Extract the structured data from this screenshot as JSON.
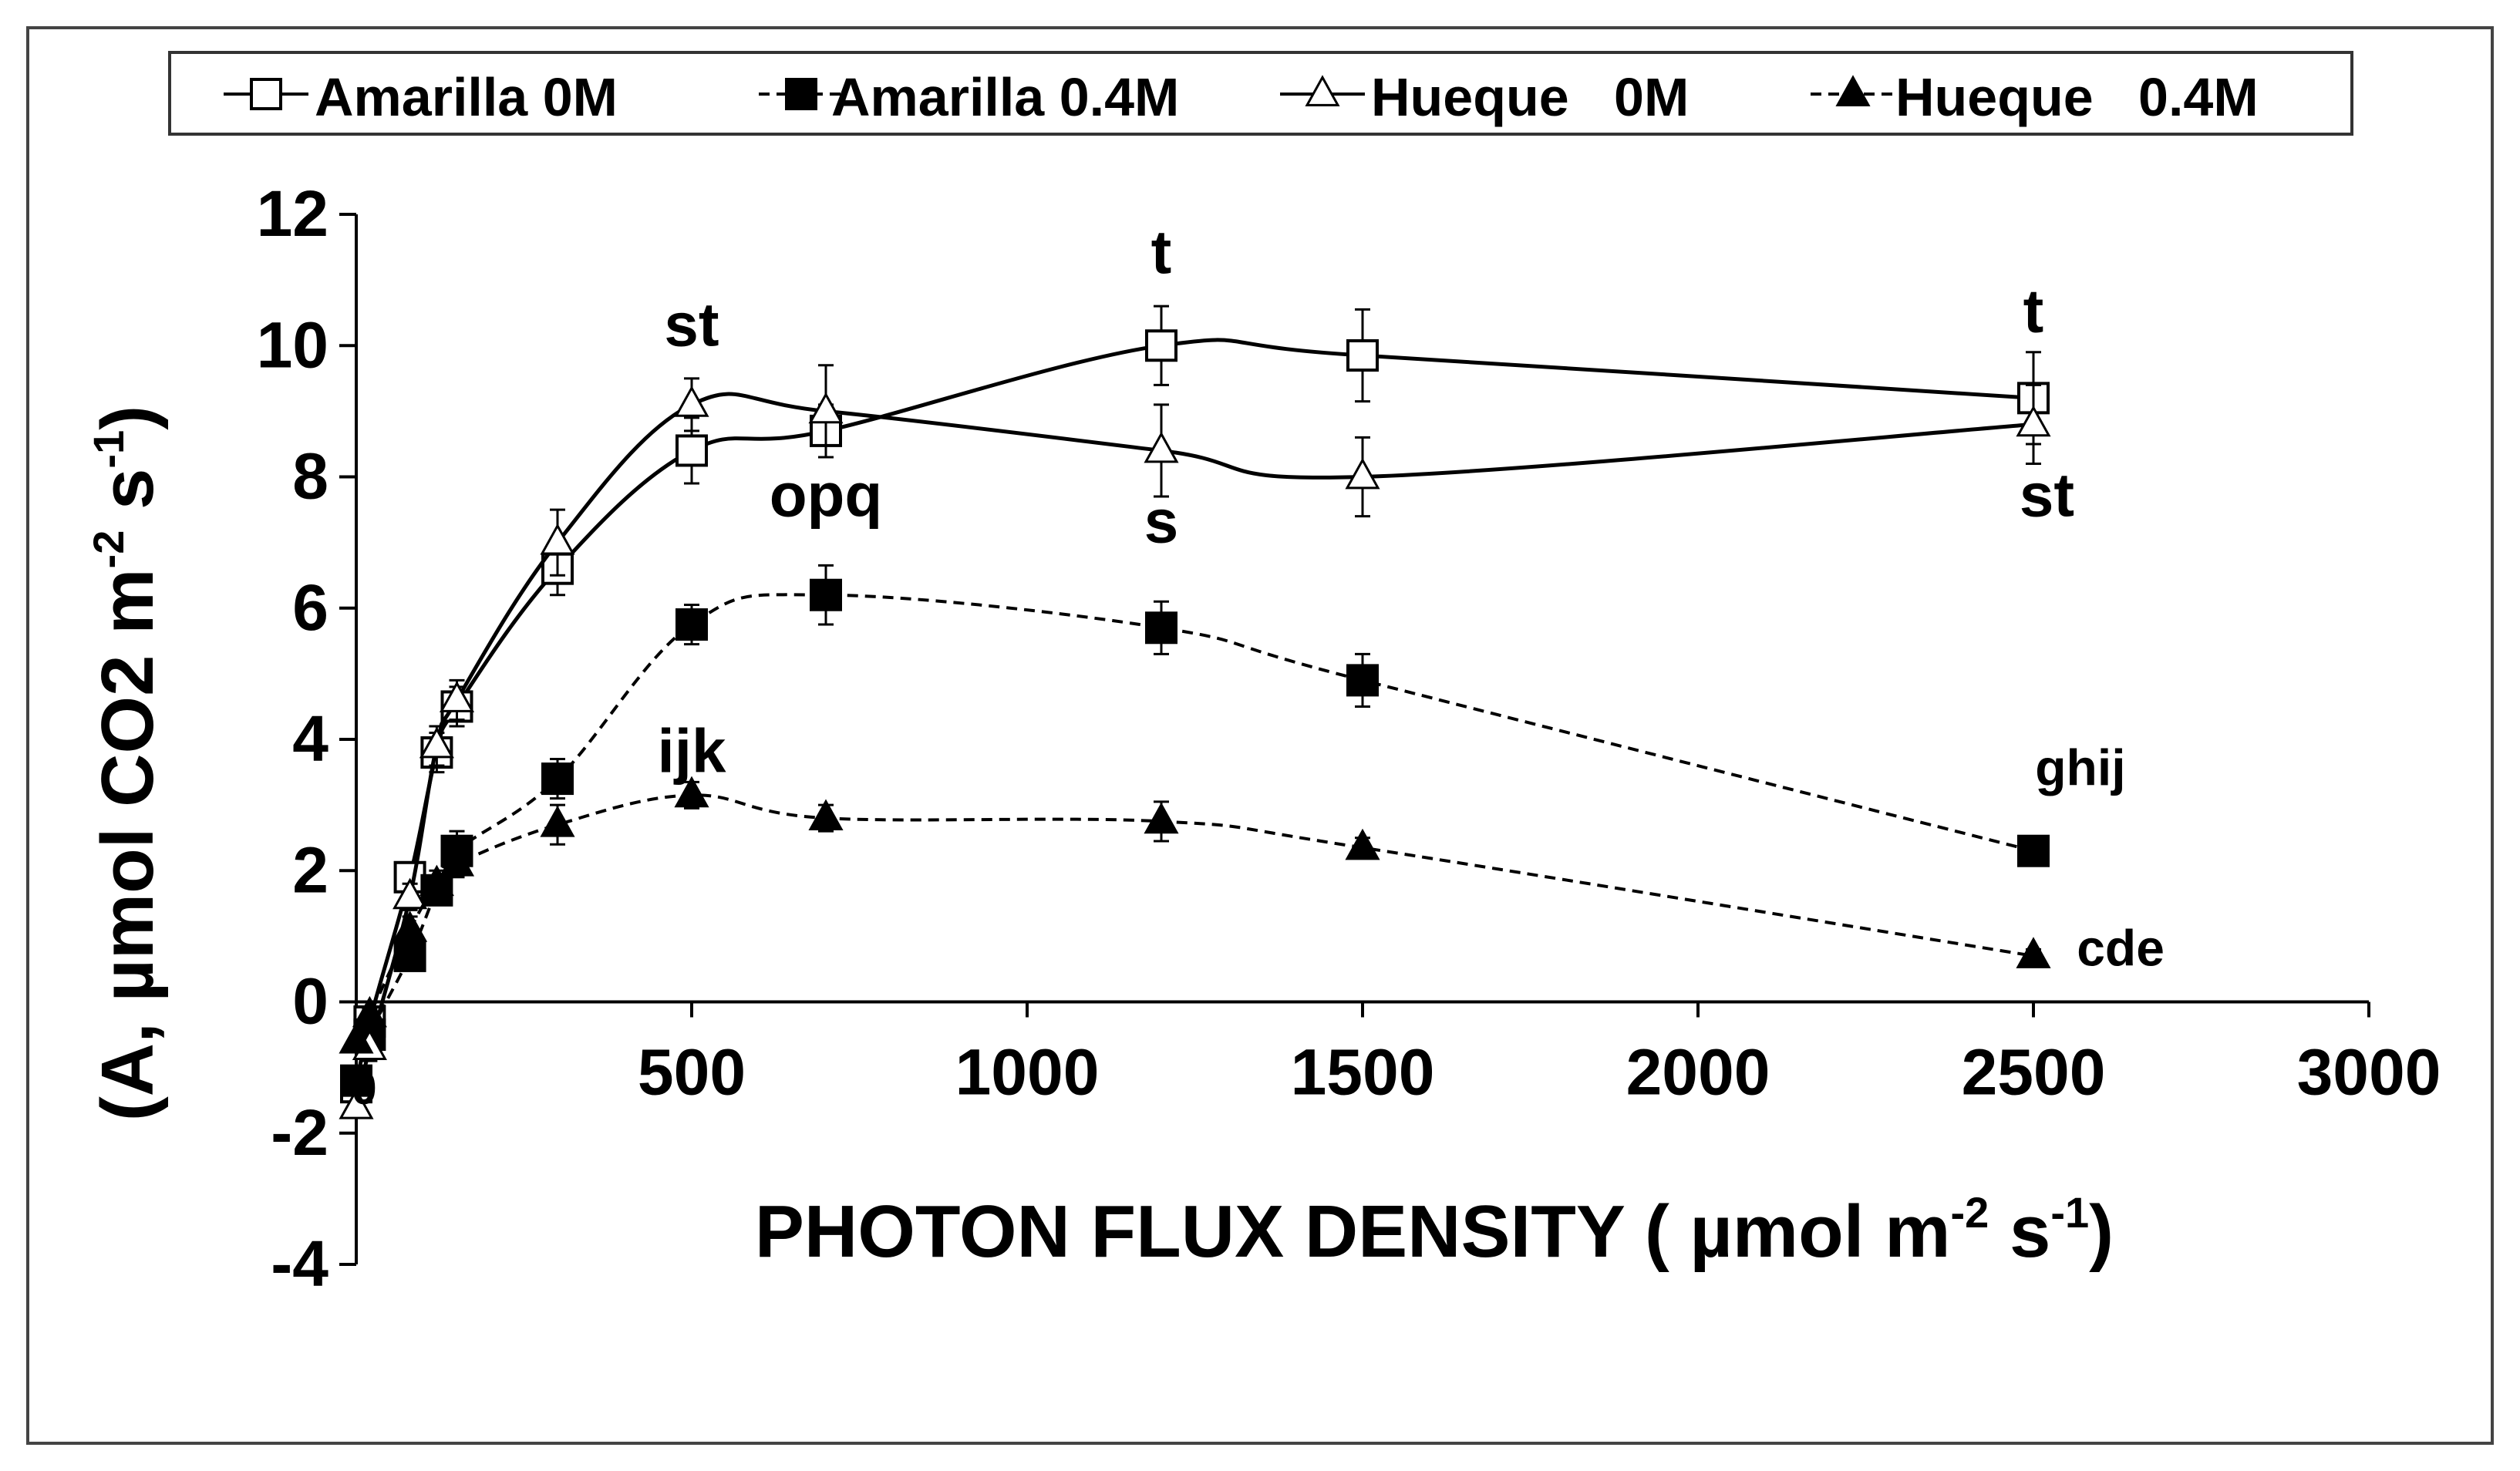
{
  "chart_data": {
    "type": "line",
    "title": "",
    "xlabel": "PHOTON FLUX DENSITY ( µmol m-2 s-1)",
    "ylabel": "(A, µmol CO2  m-2 s-1)",
    "xlabel_parts": {
      "pre": "PHOTON FLUX DENSITY ( µmol m",
      "sup1": "-2",
      "mid": " s",
      "sup2": "-1",
      "post": ")"
    },
    "ylabel_parts": {
      "pre": "(A, µmol CO2  m",
      "sup1": "-2",
      "mid": " s",
      "sup2": "-1",
      "post": ")"
    },
    "xlim": [
      0,
      3000
    ],
    "ylim": [
      -4,
      12
    ],
    "x_ticks": [
      0,
      500,
      1000,
      1500,
      2000,
      2500,
      3000
    ],
    "x_tick_labels": [
      "",
      "500",
      "1000",
      "1500",
      "2000",
      "2500",
      "3000"
    ],
    "y_ticks": [
      -4,
      -2,
      0,
      2,
      4,
      6,
      8,
      10,
      12
    ],
    "y_tick_labels": [
      "-4",
      "-2",
      "0",
      "2",
      "4",
      "6",
      "8",
      "10",
      "12"
    ],
    "origin_label": "0",
    "grid": false,
    "legend_position": "top",
    "series": [
      {
        "name": "Amarilla 0M",
        "marker": "square-open",
        "line": "solid",
        "x": [
          0,
          20,
          80,
          120,
          150,
          300,
          500,
          700,
          1200,
          1500,
          2500
        ],
        "y": [
          -1.3,
          -0.3,
          1.9,
          3.8,
          4.5,
          6.6,
          8.4,
          8.7,
          10.0,
          9.85,
          9.2
        ],
        "err": [
          0,
          0.2,
          0.2,
          0.3,
          0.3,
          0.4,
          0.5,
          0.4,
          0.6,
          0.7,
          0.7
        ]
      },
      {
        "name": "Amarilla 0.4M",
        "marker": "square-filled",
        "line": "dashed",
        "x": [
          0,
          20,
          80,
          120,
          150,
          300,
          500,
          700,
          1200,
          1500,
          2500
        ],
        "y": [
          -1.2,
          -0.5,
          0.7,
          1.7,
          2.3,
          3.4,
          5.75,
          6.2,
          5.7,
          4.9,
          2.3
        ],
        "err": [
          0,
          0.2,
          0.2,
          0.2,
          0.3,
          0.3,
          0.3,
          0.45,
          0.4,
          0.4,
          0.15
        ]
      },
      {
        "name": "Hueque   0M",
        "marker": "triangle-open",
        "line": "solid",
        "x": [
          0,
          20,
          80,
          120,
          150,
          300,
          500,
          700,
          1200,
          1500,
          2500
        ],
        "y": [
          -1.6,
          -0.7,
          1.6,
          3.9,
          4.6,
          7.0,
          9.1,
          9.0,
          8.4,
          8.0,
          8.8
        ],
        "err": [
          0,
          0.2,
          0.2,
          0.3,
          0.3,
          0.5,
          0.4,
          0.7,
          0.7,
          0.6,
          0.6
        ]
      },
      {
        "name": "Hueque   0.4M",
        "marker": "triangle-filled",
        "line": "dashed",
        "x": [
          0,
          20,
          80,
          120,
          150,
          300,
          500,
          700,
          1200,
          1500,
          2500
        ],
        "y": [
          -0.6,
          -0.2,
          1.1,
          1.8,
          2.1,
          2.7,
          3.15,
          2.8,
          2.75,
          2.35,
          0.7
        ],
        "err": [
          0,
          0.1,
          0.2,
          0.2,
          0.2,
          0.3,
          0.2,
          0.2,
          0.3,
          0.15,
          0.1
        ]
      }
    ],
    "annotations": [
      {
        "text": "st",
        "x": 500,
        "y": 10.0
      },
      {
        "text": "opq",
        "x": 700,
        "y": 7.4
      },
      {
        "text": "ijk",
        "x": 500,
        "y": 3.5
      },
      {
        "text": "t",
        "x": 1200,
        "y": 11.1
      },
      {
        "text": "s",
        "x": 1200,
        "y": 7.0
      },
      {
        "text": "t",
        "x": 2500,
        "y": 10.2
      },
      {
        "text": "st",
        "x": 2520,
        "y": 7.4
      },
      {
        "text": "ghij",
        "x": 2570,
        "y": 3.3
      },
      {
        "text": "cde",
        "x": 2630,
        "y": 0.55
      }
    ]
  }
}
